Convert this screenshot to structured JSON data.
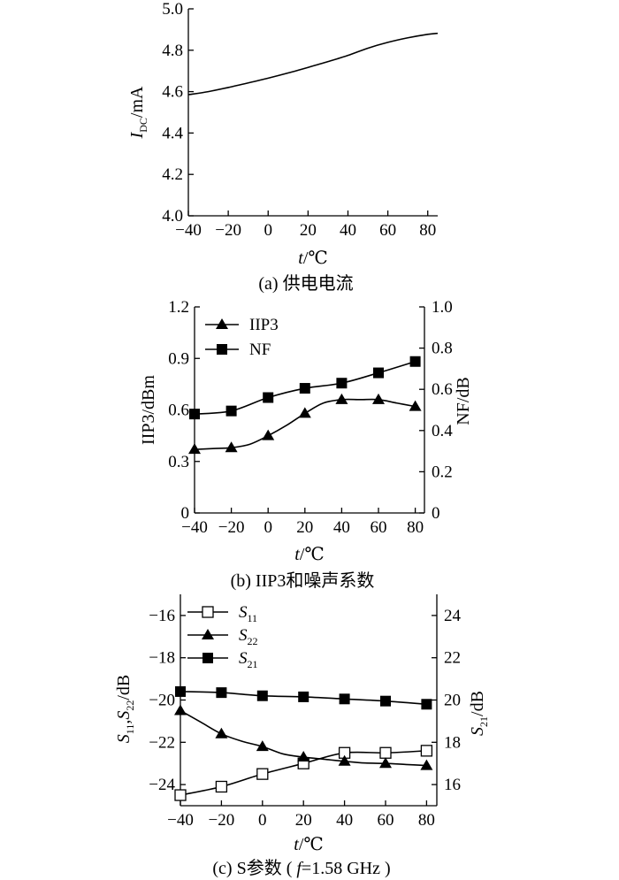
{
  "chart_data": [
    {
      "id": "a",
      "type": "line",
      "caption": "(a) 供电电流",
      "xlabel": "t/℃",
      "ylabel": "I_DC/mA",
      "xlim": [
        -40,
        85
      ],
      "ylim": [
        4.0,
        5.0
      ],
      "xticks": [
        "−40",
        "−20",
        "0",
        "20",
        "40",
        "60",
        "80"
      ],
      "yticks": [
        "4.0",
        "4.2",
        "4.4",
        "4.6",
        "4.8",
        "5.0"
      ],
      "grid": false,
      "series": [
        {
          "x": [
            -40,
            -30,
            -20,
            -10,
            0,
            10,
            20,
            30,
            40,
            50,
            60,
            70,
            80,
            85
          ],
          "y": [
            4.585,
            4.6,
            4.62,
            4.642,
            4.665,
            4.69,
            4.717,
            4.745,
            4.775,
            4.81,
            4.838,
            4.86,
            4.877,
            4.882
          ]
        }
      ]
    },
    {
      "id": "b",
      "type": "line",
      "caption": "(b) IIP3和噪声系数",
      "xlabel": "t/℃",
      "ylabel_left": "IIP3/dBm",
      "ylabel_right": "NF/dB",
      "xlim": [
        -40,
        85
      ],
      "ylim_left": [
        0,
        1.2
      ],
      "ylim_right": [
        0,
        1.0
      ],
      "xticks": [
        "−40",
        "−20",
        "0",
        "20",
        "40",
        "60",
        "80"
      ],
      "yticks_left": [
        "0",
        "0.3",
        "0.6",
        "0.9",
        "1.2"
      ],
      "yticks_right": [
        "0",
        "0.2",
        "0.4",
        "0.6",
        "0.8",
        "1.0"
      ],
      "legend_position": "top-left",
      "grid": false,
      "series": [
        {
          "name": "IIP3",
          "axis": "left",
          "marker": "triangle",
          "x": [
            -40,
            -30,
            -20,
            -10,
            0,
            10,
            20,
            30,
            40,
            50,
            60,
            70,
            80
          ],
          "y": [
            0.37,
            0.375,
            0.38,
            0.4,
            0.45,
            0.51,
            0.58,
            0.64,
            0.66,
            0.66,
            0.66,
            0.64,
            0.62
          ],
          "marker_x": [
            -40,
            -20,
            0,
            20,
            40,
            60,
            80
          ]
        },
        {
          "name": "NF",
          "axis": "right",
          "marker": "square",
          "x": [
            -40,
            -20,
            0,
            20,
            40,
            60,
            80
          ],
          "y": [
            0.48,
            0.495,
            0.56,
            0.605,
            0.63,
            0.68,
            0.735
          ],
          "marker_x": [
            -40,
            -20,
            0,
            20,
            40,
            60,
            80
          ]
        }
      ]
    },
    {
      "id": "c",
      "type": "line",
      "caption": "(c) S参数 ( f=1.58 GHz )",
      "xlabel": "t/℃",
      "ylabel_left": "S11,S22/dB",
      "ylabel_right": "S21/dB",
      "xlim": [
        -40,
        85
      ],
      "ylim_left": [
        -25,
        -15
      ],
      "ylim_right": [
        15,
        25
      ],
      "xticks": [
        "−40",
        "−20",
        "0",
        "20",
        "40",
        "60",
        "80"
      ],
      "yticks_left": [
        "−24",
        "−22",
        "−20",
        "−18",
        "−16"
      ],
      "yticks_right": [
        "16",
        "18",
        "20",
        "22",
        "24"
      ],
      "legend_position": "top-left",
      "grid": false,
      "series": [
        {
          "name": "S11",
          "axis": "left",
          "marker": "open-square",
          "x": [
            -40,
            -20,
            0,
            20,
            40,
            60,
            80
          ],
          "y": [
            -24.5,
            -24.1,
            -23.5,
            -23.0,
            -22.5,
            -22.5,
            -22.4
          ],
          "marker_x": [
            -40,
            -20,
            0,
            20,
            40,
            60,
            80
          ]
        },
        {
          "name": "S22",
          "axis": "left",
          "marker": "triangle",
          "x": [
            -40,
            -30,
            -20,
            -10,
            0,
            10,
            20,
            30,
            40,
            50,
            60,
            70,
            80
          ],
          "y": [
            -20.5,
            -21.05,
            -21.6,
            -21.95,
            -22.2,
            -22.55,
            -22.7,
            -22.8,
            -22.9,
            -22.98,
            -23.0,
            -23.05,
            -23.1
          ],
          "marker_x": [
            -40,
            -20,
            0,
            20,
            40,
            60,
            80
          ]
        },
        {
          "name": "S21",
          "axis": "right",
          "marker": "square",
          "x": [
            -40,
            -20,
            0,
            20,
            40,
            60,
            80
          ],
          "y": [
            20.4,
            20.35,
            20.2,
            20.15,
            20.05,
            19.95,
            19.8
          ],
          "marker_x": [
            -40,
            -20,
            0,
            20,
            40,
            60,
            80
          ]
        }
      ]
    }
  ]
}
